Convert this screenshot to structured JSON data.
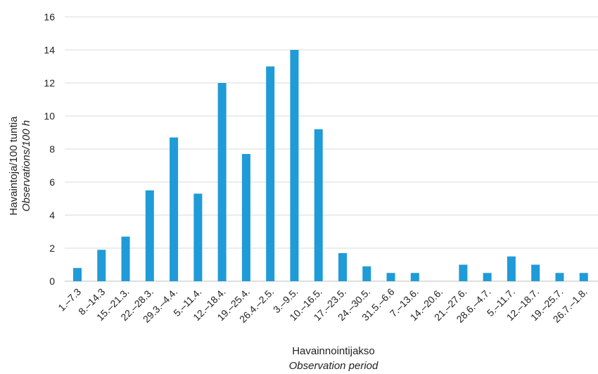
{
  "chart_data": {
    "type": "bar",
    "categories": [
      "1.–7.3",
      "8.–14.3",
      "15.–21.3.",
      "22.–28.3.",
      "29.3.–4.4.",
      "5.–11.4.",
      "12.–18.4.",
      "19.–25.4.",
      "26.4.–2.5.",
      "3.–9.5.",
      "10.–16.5.",
      "17.–23.5.",
      "24.–30.5.",
      "31.5.–6.6",
      "7.–13.6.",
      "14.–20.6.",
      "21.–27.6.",
      "28.6.–4.7.",
      "5.–11.7.",
      "12.–18.7.",
      "19.–25.7.",
      "26.7.–1.8."
    ],
    "values": [
      0.8,
      1.9,
      2.7,
      5.5,
      8.7,
      5.3,
      12.0,
      7.7,
      13.0,
      14.0,
      9.2,
      1.7,
      0.9,
      0.5,
      0.5,
      0.0,
      1.0,
      0.5,
      1.5,
      1.0,
      0.5,
      0.5
    ],
    "ylabel": "Havaintoja/100 tuntia",
    "ylabel_en": "Observations/100 h",
    "xlabel": "Havainnointijakso",
    "xlabel_en": "Observation period",
    "ylim": [
      0,
      16
    ],
    "yticks": [
      "0",
      "2",
      "4",
      "6",
      "8",
      "10",
      "12",
      "14",
      "16"
    ],
    "bar_color": "#1f9bd7",
    "grid": true
  }
}
